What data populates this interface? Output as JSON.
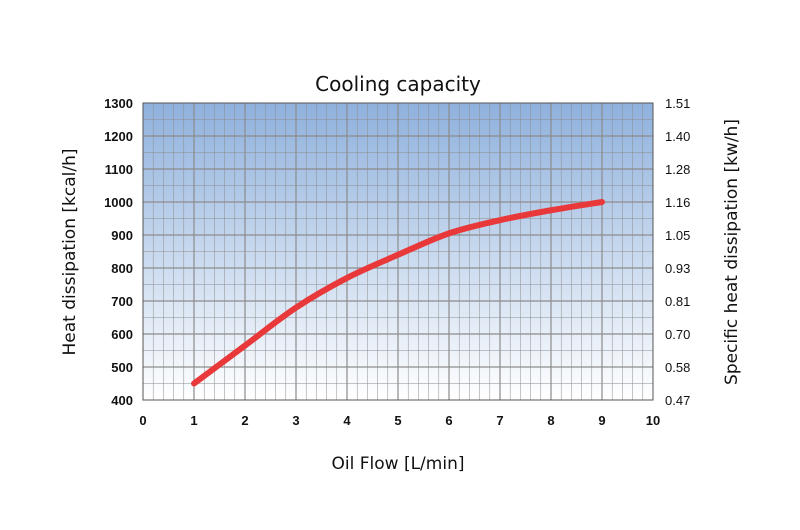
{
  "chart_data": {
    "type": "line",
    "title": "Cooling capacity",
    "xlabel": "Oil Flow [L/min]",
    "ylabel": "Heat dissipation [kcal/h]",
    "y2label": "Specific heat dissipation [kw/h]",
    "xlim": [
      0,
      10
    ],
    "ylim": [
      400,
      1300
    ],
    "x_ticks": [
      "0",
      "1",
      "2",
      "3",
      "4",
      "5",
      "6",
      "7",
      "8",
      "9",
      "10"
    ],
    "y_ticks": [
      "400",
      "500",
      "600",
      "700",
      "800",
      "900",
      "1000",
      "1100",
      "1200",
      "1300"
    ],
    "y2_ticks": [
      "0.47",
      "0.58",
      "0.70",
      "0.81",
      "0.93",
      "1.05",
      "1.16",
      "1.28",
      "1.40",
      "1.51"
    ],
    "grid": true,
    "colors": {
      "line": "#e8383a",
      "plot_bg_top": "#8fb1dd",
      "plot_bg_bottom": "#ffffff",
      "grid": "#8c8c8c"
    },
    "series": [
      {
        "x": [
          1,
          2,
          3,
          4,
          5,
          6,
          7,
          8,
          9
        ],
        "values": [
          450,
          565,
          680,
          770,
          840,
          905,
          945,
          975,
          1000
        ]
      }
    ]
  }
}
